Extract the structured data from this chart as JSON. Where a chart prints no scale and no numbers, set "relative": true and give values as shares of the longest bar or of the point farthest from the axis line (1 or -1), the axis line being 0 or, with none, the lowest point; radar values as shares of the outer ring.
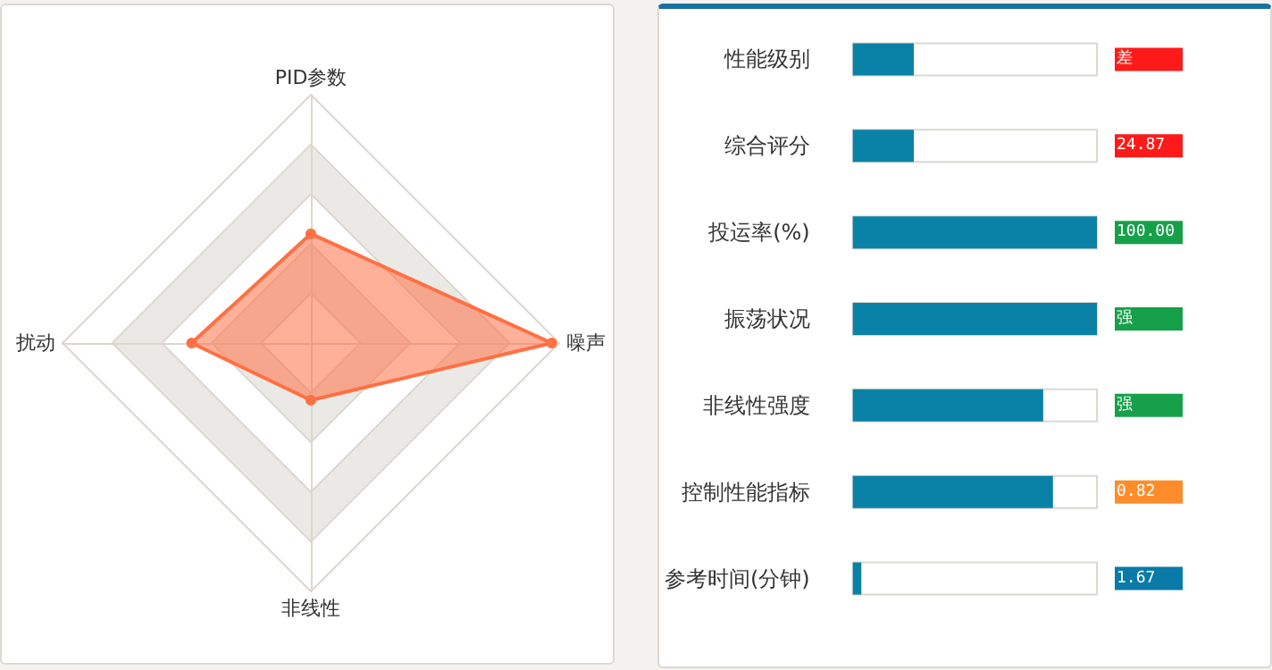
{
  "chart_data": [
    {
      "type": "radar",
      "categories": [
        "PID参数",
        "噪声",
        "非线性",
        "扰动"
      ],
      "relative": true,
      "marker": "circle",
      "series": [
        {
          "color": "#ff7043",
          "values": [
            0.44,
            0.97,
            0.23,
            0.48
          ]
        }
      ]
    },
    {
      "type": "bar",
      "orientation": "horizontal",
      "relative": true,
      "categories": [
        "性能级别",
        "综合评分",
        "投运率(%)",
        "振荡状况",
        "非线性强度",
        "控制性能指标",
        "参考时间(分钟)"
      ],
      "values": [
        0.25,
        0.25,
        1,
        1,
        0.78,
        0.82,
        0.035
      ],
      "color": "#0a82a8",
      "annotations": [
        "差",
        "24.87",
        "100.00",
        "强",
        "强",
        "0.82",
        "1.67"
      ]
    }
  ]
}
